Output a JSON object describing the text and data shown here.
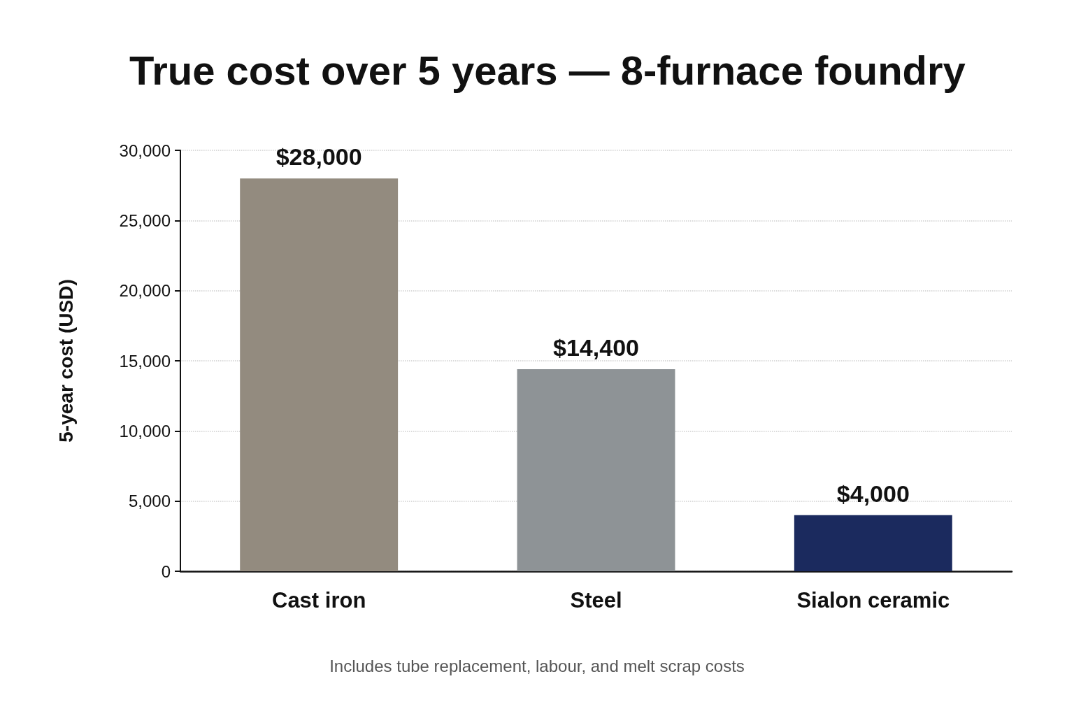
{
  "chart_data": {
    "type": "bar",
    "title": "True cost over 5 years — 8-furnace foundry",
    "ylabel": "5-year cost (USD)",
    "categories": [
      "Cast iron",
      "Steel",
      "Sialon ceramic"
    ],
    "values": [
      28000,
      14400,
      4000
    ],
    "colors": [
      "#938b7f",
      "#8e9396",
      "#1b2a5e"
    ],
    "value_labels": [
      "$28,000",
      "$14,400",
      "$4,000"
    ],
    "ylim": [
      0,
      30000
    ],
    "yticks": [
      0,
      {
        "value": 5000,
        "label": "5,000"
      },
      {
        "value": 10000,
        "label": "10,000"
      },
      {
        "value": 15000,
        "label": "15,000"
      },
      {
        "value": 20000,
        "label": "20,000"
      },
      {
        "value": 25000,
        "label": "25,000"
      },
      {
        "value": 30000,
        "label": "30,000"
      }
    ],
    "grid": "y",
    "annotations": [
      "Includes tube replacement, labour, and melt scrap costs"
    ]
  }
}
